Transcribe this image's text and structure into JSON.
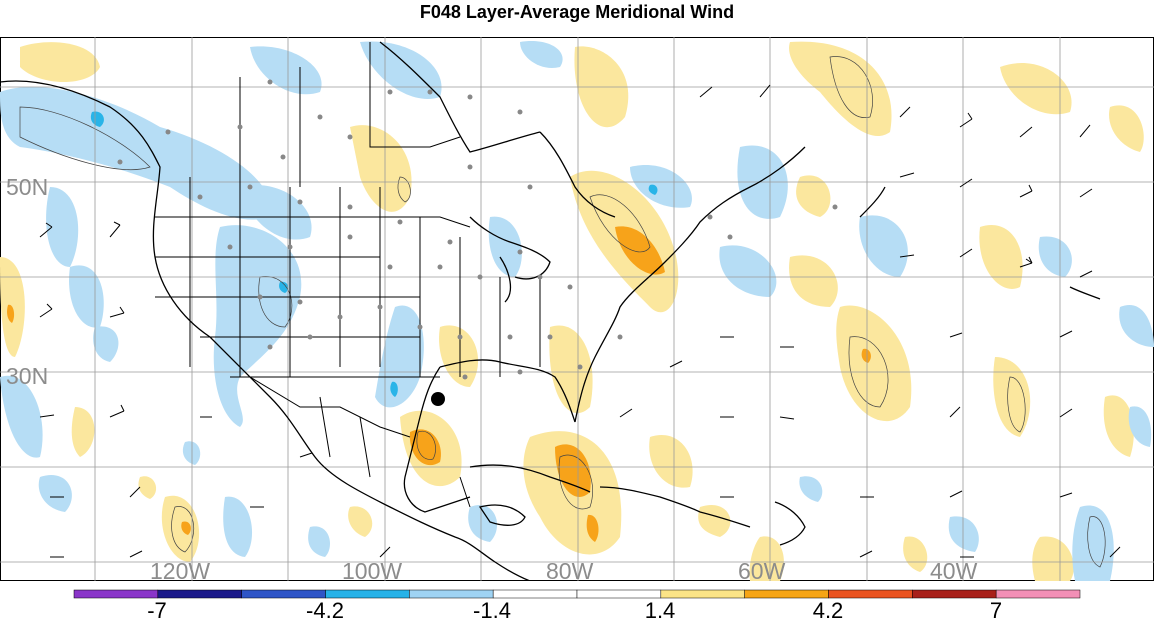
{
  "title": "F048 Layer-Average Meridional Wind",
  "colors": {
    "pos_light": "#fbe79e",
    "pos_mid": "#f7a31a",
    "pos_dark": "#e8541f",
    "neg_light": "#b6ddf5",
    "neg_mid": "#29b4e8",
    "neg_dark": "#1f4fb0",
    "grid": "#9a9a9a",
    "coast": "#000000",
    "station": "#888888"
  },
  "map": {
    "lat_labels": [
      {
        "text": "50N",
        "lat": 50
      },
      {
        "text": "30N",
        "lat": 30
      }
    ],
    "lon_labels": [
      {
        "text": "120W",
        "lon": -120
      },
      {
        "text": "100W",
        "lon": -100
      },
      {
        "text": "80W",
        "lon": -80
      },
      {
        "text": "60W",
        "lon": -60
      },
      {
        "text": "40W",
        "lon": -40
      }
    ]
  },
  "colorbar": {
    "colors": [
      "#8a35c9",
      "#1b1a8a",
      "#2e55c7",
      "#26b2e8",
      "#9fd3f3",
      "#ffffff",
      "#ffffff",
      "#fbe487",
      "#f6a516",
      "#ea5320",
      "#a8201a",
      "#f28fb6"
    ],
    "labels": [
      "-7",
      "-4.2",
      "-1.4",
      "1.4",
      "4.2",
      "7"
    ]
  }
}
